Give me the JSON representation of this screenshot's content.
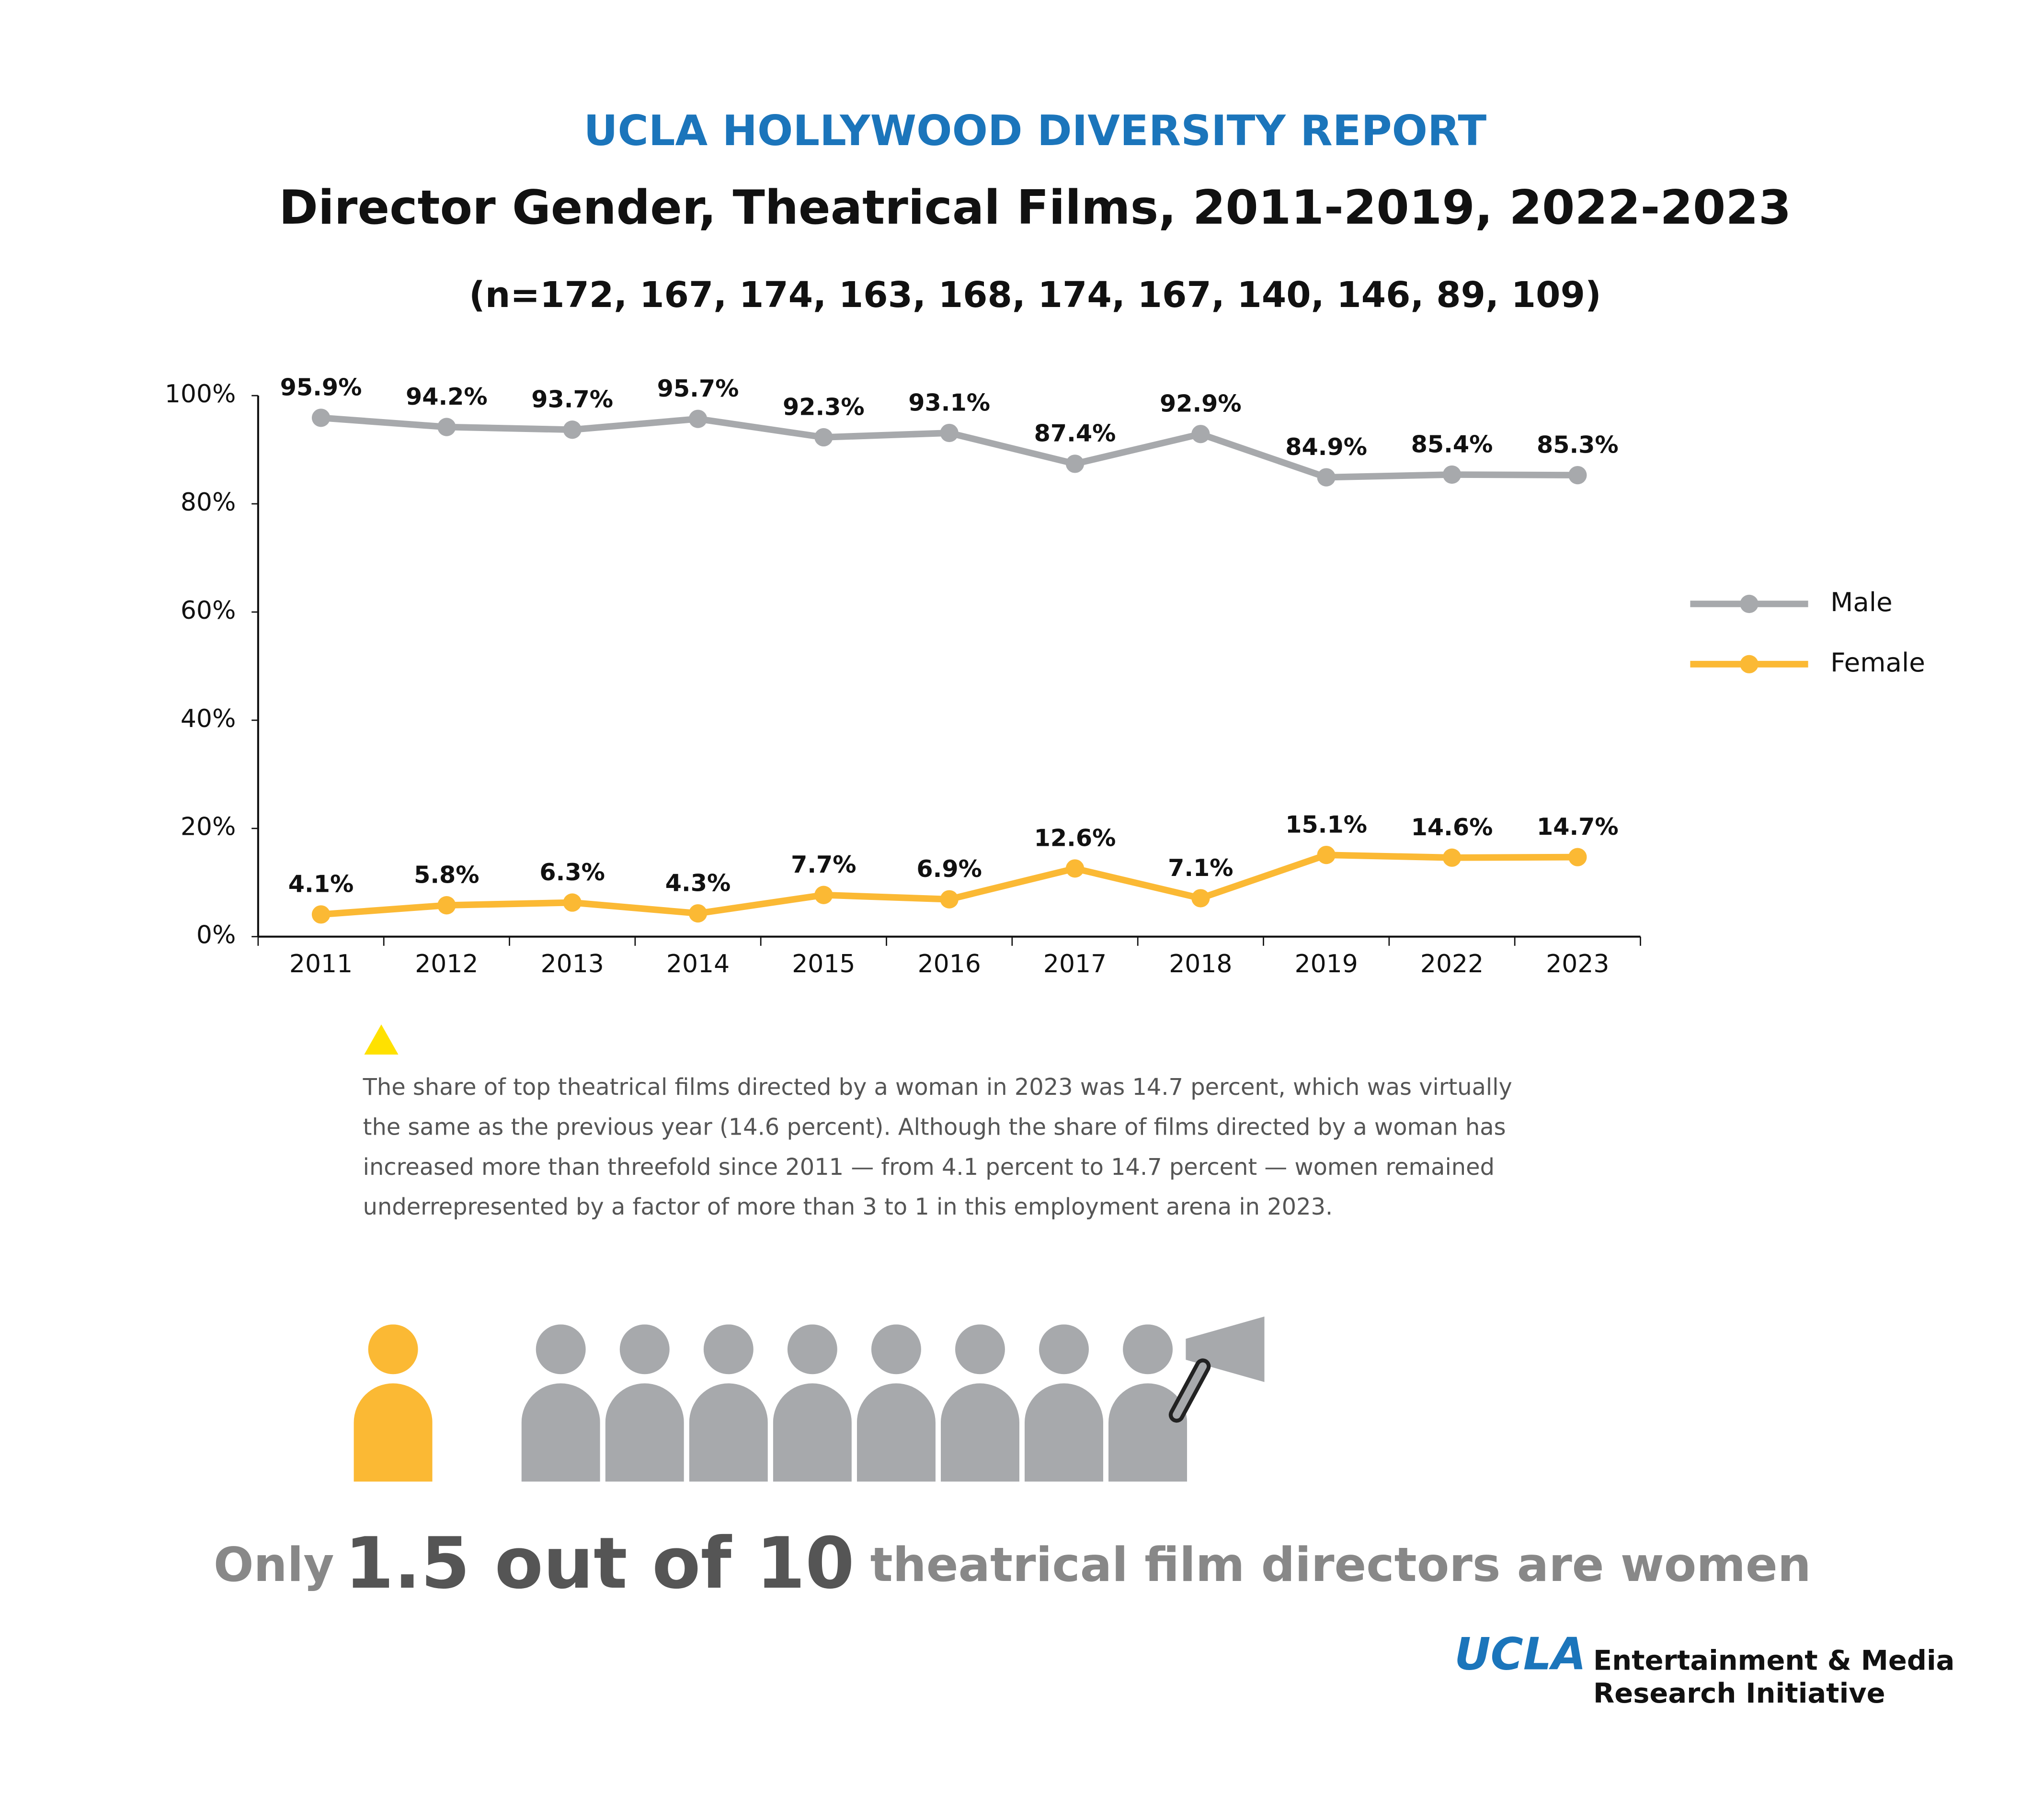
{
  "chart_data": {
    "type": "line",
    "header": "UCLA HOLLYWOOD DIVERSITY REPORT",
    "title": "Director Gender, Theatrical Films, 2011-2019, 2022-2023",
    "subtitle": "(n=172, 167, 174, 163, 168, 174, 167, 140, 146, 89, 109)",
    "categories": [
      "2011",
      "2012",
      "2013",
      "2014",
      "2015",
      "2016",
      "2017",
      "2018",
      "2019",
      "2022",
      "2023"
    ],
    "series": [
      {
        "name": "Male",
        "color": "#a7a9ac",
        "values": [
          95.9,
          94.2,
          93.7,
          95.7,
          92.3,
          93.1,
          87.4,
          92.9,
          84.9,
          85.4,
          85.3
        ],
        "value_labels": [
          "95.9%",
          "94.2%",
          "93.7%",
          "95.7%",
          "92.3%",
          "93.1%",
          "87.4%",
          "92.9%",
          "84.9%",
          "85.4%",
          "85.3%"
        ]
      },
      {
        "name": "Female",
        "color": "#fbb934",
        "values": [
          4.1,
          5.8,
          6.3,
          4.3,
          7.7,
          6.9,
          12.6,
          7.1,
          15.1,
          14.6,
          14.7
        ],
        "value_labels": [
          "4.1%",
          "5.8%",
          "6.3%",
          "4.3%",
          "7.7%",
          "6.9%",
          "12.6%",
          "7.1%",
          "15.1%",
          "14.6%",
          "14.7%"
        ]
      }
    ],
    "ylim": [
      0,
      100
    ],
    "yticks": [
      {
        "value": 0,
        "label": "0%"
      },
      {
        "value": 20,
        "label": "20%"
      },
      {
        "value": 40,
        "label": "40%"
      },
      {
        "value": 60,
        "label": "60%"
      },
      {
        "value": 80,
        "label": "80%"
      },
      {
        "value": 100,
        "label": "100%"
      }
    ],
    "grid": false,
    "legend": "right",
    "note": [
      "The share of top theatrical films directed by a woman in 2023 was 14.7 percent, which was virtually",
      "the same as the previous year (14.6 percent). Although the share of films directed by a woman has",
      "increased more than threefold since 2011 — from 4.1 percent to 14.7 percent — women remained",
      "underrepresented by a factor of more than 3 to 1 in this employment arena in 2023."
    ],
    "tagline": [
      "Only",
      "1.5 out of 10",
      "theatrical film directors are women"
    ],
    "logo": [
      "UCLA",
      "Entertainment & Media",
      "Research Initiative"
    ]
  }
}
